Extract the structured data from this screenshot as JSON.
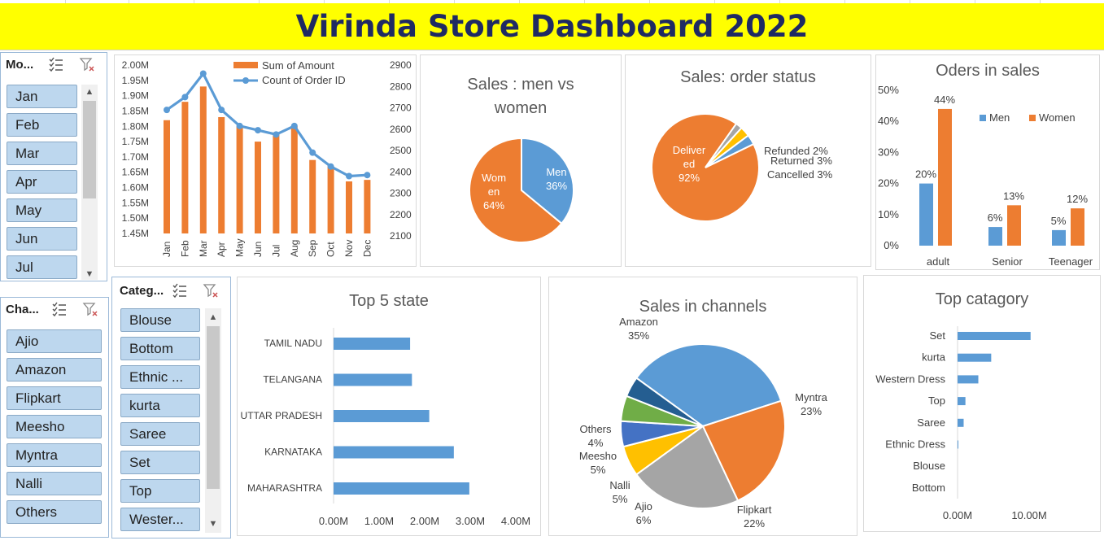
{
  "title": "Virinda Store Dashboard 2022",
  "colors": {
    "orange": "#ed7d31",
    "blue": "#5b9bd5",
    "gray": "#a5a5a5",
    "gold": "#ffc000",
    "darkblue": "#255e91",
    "green": "#70ad47",
    "navy": "#1f2a63",
    "banner": "#ffff00"
  },
  "slicers": {
    "month": {
      "header": "Mo...",
      "items": [
        "Jan",
        "Feb",
        "Mar",
        "Apr",
        "May",
        "Jun",
        "Jul"
      ]
    },
    "channel": {
      "header": "Cha...",
      "items": [
        "Ajio",
        "Amazon",
        "Flipkart",
        "Meesho",
        "Myntra",
        "Nalli",
        "Others"
      ]
    },
    "category": {
      "header": "Categ...",
      "items": [
        "Blouse",
        "Bottom",
        "Ethnic ...",
        "kurta",
        "Saree",
        "Set",
        "Top",
        "Wester..."
      ]
    }
  },
  "chart_data": [
    {
      "type": "bar+line",
      "title": "",
      "categories": [
        "Jan",
        "Feb",
        "Mar",
        "Apr",
        "May",
        "Jun",
        "Jul",
        "Aug",
        "Sep",
        "Oct",
        "Nov",
        "Dec"
      ],
      "series": [
        {
          "name": "Sum of Amount",
          "type": "bar",
          "axis": "left",
          "values": [
            1.82,
            1.88,
            1.93,
            1.83,
            1.8,
            1.75,
            1.78,
            1.8,
            1.69,
            1.67,
            1.62,
            1.625
          ]
        },
        {
          "name": "Count of Order ID",
          "type": "line",
          "axis": "right",
          "values": [
            2690,
            2750,
            2860,
            2690,
            2615,
            2595,
            2575,
            2615,
            2490,
            2425,
            2380,
            2385
          ]
        }
      ],
      "y_left": {
        "ticks": [
          "1.45M",
          "1.50M",
          "1.55M",
          "1.60M",
          "1.65M",
          "1.70M",
          "1.75M",
          "1.80M",
          "1.85M",
          "1.90M",
          "1.95M",
          "2.00M"
        ],
        "range": [
          1.45,
          2.0
        ]
      },
      "y_right": {
        "ticks": [
          "2100",
          "2200",
          "2300",
          "2400",
          "2500",
          "2600",
          "2700",
          "2800",
          "2900"
        ],
        "range": [
          2100,
          2900
        ]
      },
      "legend": "top"
    },
    {
      "type": "pie",
      "title": "Sales : men vs women",
      "slices": [
        {
          "label": "Men",
          "value": 36,
          "text": "36%"
        },
        {
          "label": "Women",
          "value": 64,
          "text": "64%"
        }
      ]
    },
    {
      "type": "pie",
      "title": "Sales: order status",
      "slices": [
        {
          "label": "Delivered",
          "value": 92,
          "text": "92%"
        },
        {
          "label": "Refunded",
          "value": 2,
          "text": "2%"
        },
        {
          "label": "Returned",
          "value": 3,
          "text": "3%"
        },
        {
          "label": "Cancelled",
          "value": 3,
          "text": "3%"
        }
      ]
    },
    {
      "type": "bar",
      "title": "Oders in sales",
      "categories": [
        "adult",
        "Senior",
        "Teenager"
      ],
      "series": [
        {
          "name": "Men",
          "values": [
            20,
            6,
            5
          ]
        },
        {
          "name": "Women",
          "values": [
            44,
            13,
            12
          ]
        }
      ],
      "y_ticks": [
        "0%",
        "10%",
        "20%",
        "30%",
        "40%",
        "50%"
      ],
      "ylim": [
        0,
        50
      ],
      "legend": "top-right"
    },
    {
      "type": "bar",
      "orientation": "horizontal",
      "title": "Top 5 state",
      "categories": [
        "TAMIL NADU",
        "TELANGANA",
        "UTTAR PRADESH",
        "KARNATAKA",
        "MAHARASHTRA"
      ],
      "values": [
        1.68,
        1.72,
        2.1,
        2.64,
        2.98
      ],
      "x_ticks": [
        "0.00M",
        "1.00M",
        "2.00M",
        "3.00M",
        "4.00M"
      ],
      "xlim": [
        0,
        4
      ]
    },
    {
      "type": "pie",
      "title": "Sales in channels",
      "slices": [
        {
          "label": "Amazon",
          "value": 35,
          "text": "35%"
        },
        {
          "label": "Myntra",
          "value": 23,
          "text": "23%"
        },
        {
          "label": "Flipkart",
          "value": 22,
          "text": "22%"
        },
        {
          "label": "Ajio",
          "value": 6,
          "text": "6%"
        },
        {
          "label": "Nalli",
          "value": 5,
          "text": "5%"
        },
        {
          "label": "Meesho",
          "value": 5,
          "text": "5%"
        },
        {
          "label": "Others",
          "value": 4,
          "text": "4%"
        }
      ]
    },
    {
      "type": "bar",
      "orientation": "horizontal",
      "title": "Top catagory",
      "categories": [
        "Set",
        "kurta",
        "Western Dress",
        "Top",
        "Saree",
        "Ethnic Dress",
        "Blouse",
        "Bottom"
      ],
      "values": [
        10.2,
        4.7,
        2.9,
        1.1,
        0.85,
        0.1,
        0,
        0
      ],
      "x_ticks": [
        "0.00M",
        "10.00M"
      ],
      "xlim": [
        0,
        19
      ]
    }
  ]
}
